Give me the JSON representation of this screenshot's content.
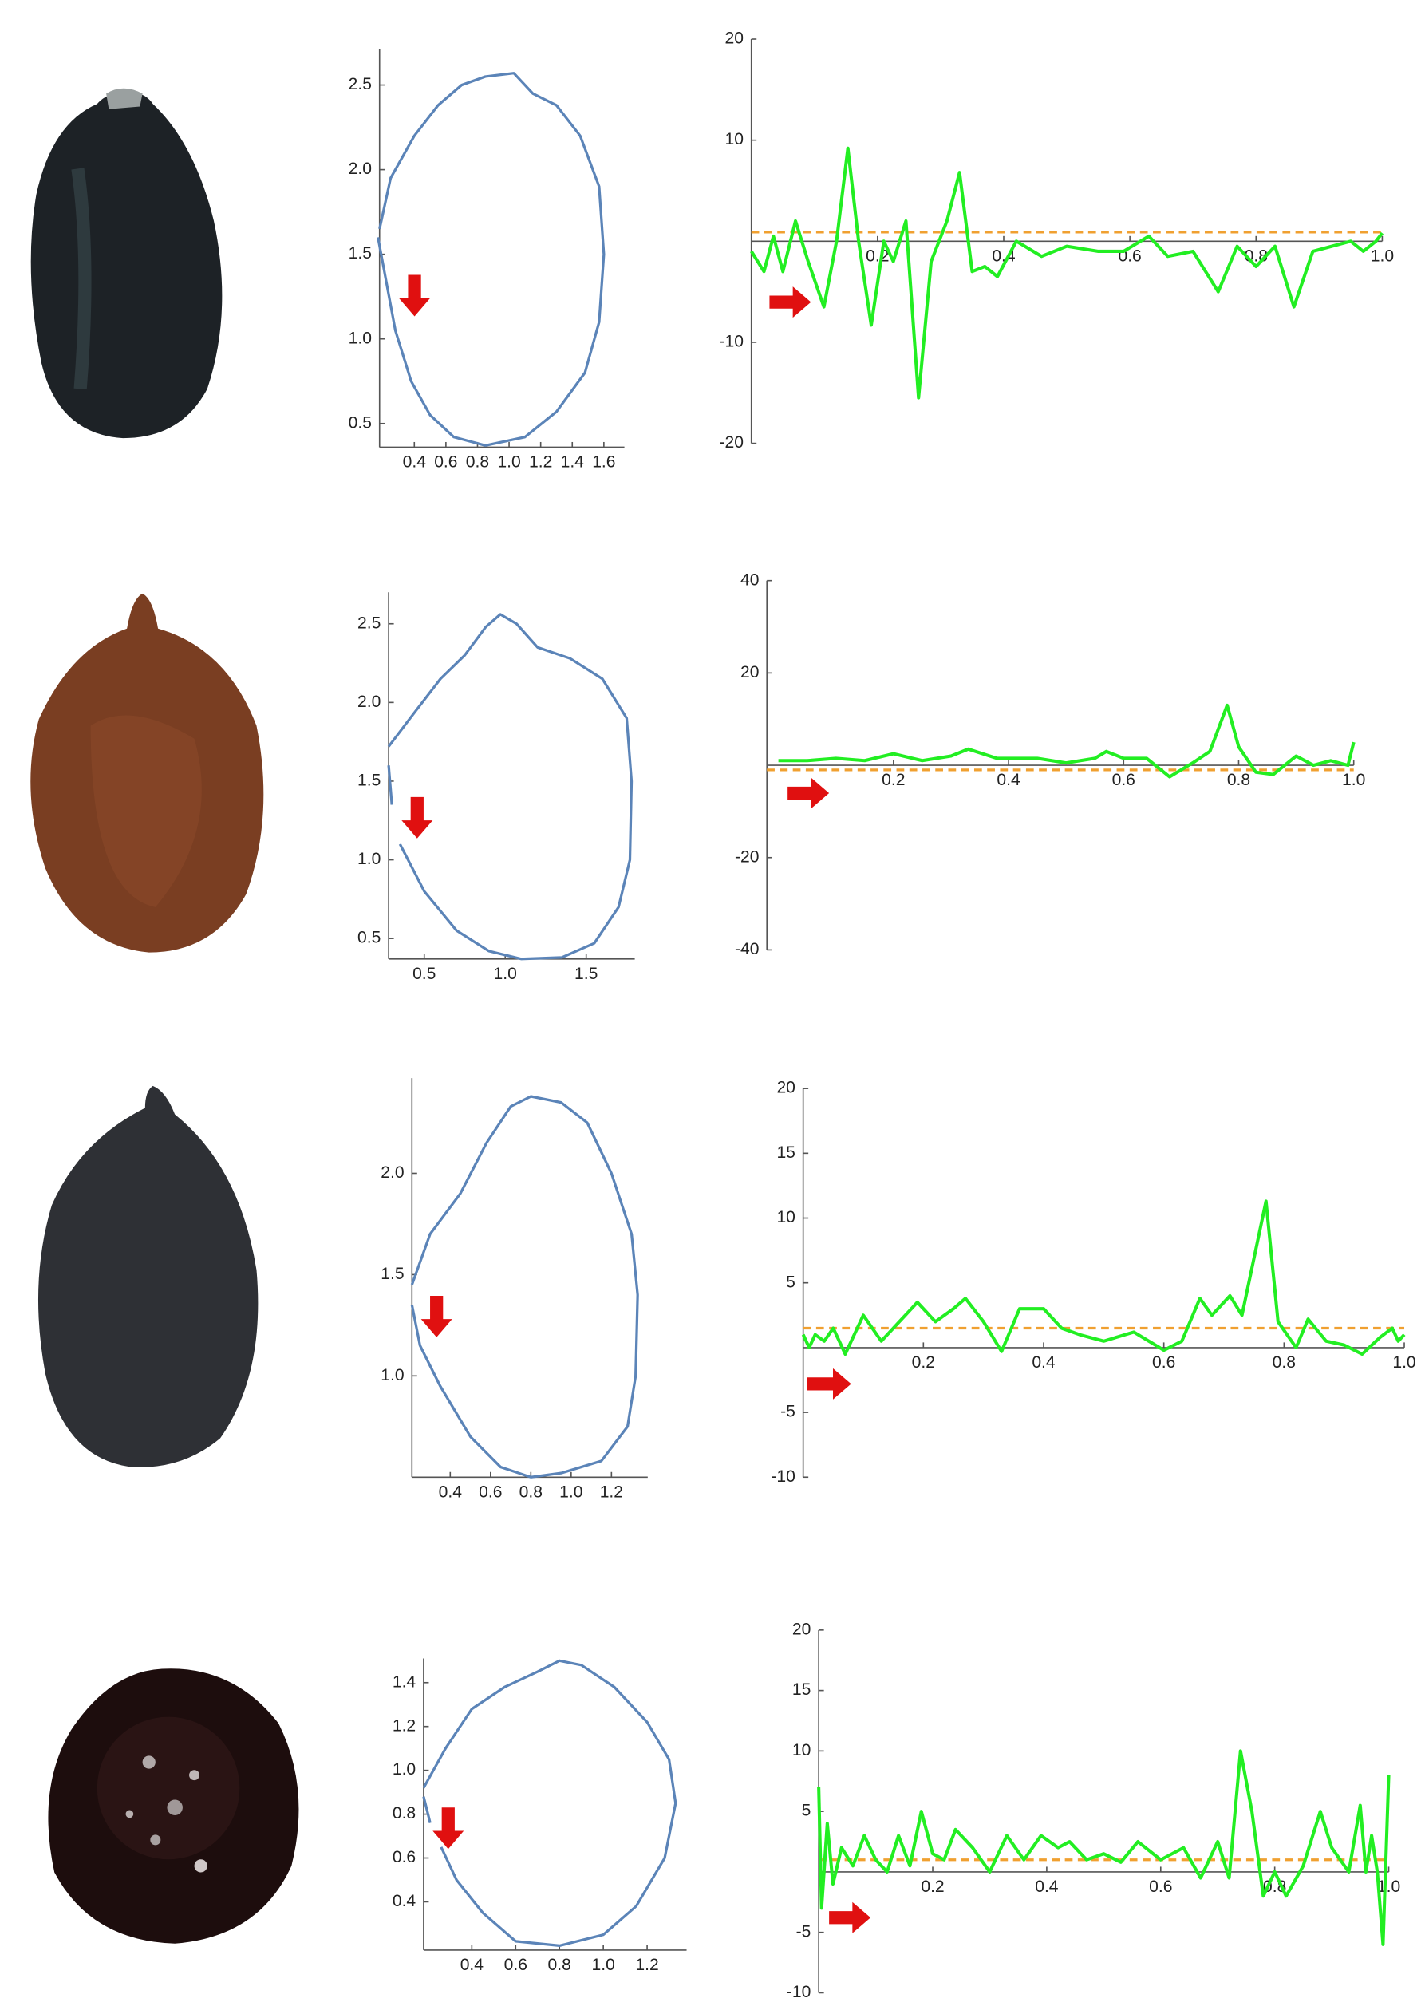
{
  "chart_data": [
    {
      "type": "line",
      "color": "#5b84b8",
      "x": [
        0.18,
        0.25,
        0.4,
        0.55,
        0.7,
        0.85,
        1.03,
        1.15,
        1.3,
        1.45,
        1.57,
        1.6,
        1.57,
        1.48,
        1.3,
        1.1,
        0.85,
        0.65,
        0.5,
        0.38,
        0.28,
        0.22,
        0.17
      ],
      "values": [
        1.65,
        1.95,
        2.2,
        2.38,
        2.5,
        2.55,
        2.57,
        2.45,
        2.38,
        2.2,
        1.9,
        1.5,
        1.1,
        0.8,
        0.57,
        0.42,
        0.37,
        0.42,
        0.55,
        0.75,
        1.05,
        1.35,
        1.6
      ],
      "xlim": [
        0.18,
        1.73
      ],
      "ylim": [
        0.36,
        2.71
      ],
      "xticks": [
        0.4,
        0.6,
        0.8,
        {
          "value": 1,
          "label": "1.0"
        },
        1.2,
        1.4,
        1.6
      ],
      "yticks": [
        0.5,
        {
          "value": 1,
          "label": "1.0"
        },
        1.5,
        {
          "value": 2,
          "label": "2.0"
        },
        2.5
      ]
    },
    {
      "type": "line",
      "color": "#22ee22",
      "x": [
        0,
        0.02,
        0.035,
        0.05,
        0.07,
        0.09,
        0.115,
        0.135,
        0.153,
        0.17,
        0.19,
        0.21,
        0.225,
        0.245,
        0.265,
        0.285,
        0.31,
        0.33,
        0.35,
        0.37,
        0.39,
        0.42,
        0.46,
        0.5,
        0.55,
        0.59,
        0.63,
        0.66,
        0.7,
        0.74,
        0.77,
        0.8,
        0.83,
        0.86,
        0.89,
        0.92,
        0.95,
        0.97,
        0.99,
        1.0
      ],
      "values": [
        -1,
        -3,
        0.5,
        -3,
        2,
        -2,
        -6.5,
        0,
        9.2,
        0,
        -8.3,
        0,
        -2,
        2,
        -15.5,
        -2,
        2,
        6.8,
        -3,
        -2.5,
        -3.5,
        0,
        -1.5,
        -0.5,
        -1,
        -1,
        0.5,
        -1.5,
        -1,
        -5,
        -0.5,
        -2.5,
        -0.5,
        -6.5,
        -1,
        -0.5,
        0,
        -1,
        0,
        0.8
      ],
      "threshold": 0.9,
      "threshold_color": "#f0a030",
      "xlim": [
        0,
        1.0
      ],
      "ylim": [
        -20,
        20
      ],
      "xticks": [
        0.2,
        0.4,
        0.6,
        0.8,
        {
          "value": 1,
          "label": "1.0"
        }
      ],
      "yticks": [
        -20,
        -10,
        10,
        20
      ]
    },
    {
      "type": "line",
      "color": "#5b84b8",
      "x": [
        0.28,
        0.45,
        0.6,
        0.75,
        0.88,
        0.97,
        1.07,
        1.2,
        1.4,
        1.6,
        1.75,
        1.78,
        1.77,
        1.7,
        1.55,
        1.35,
        1.1,
        0.9,
        0.7,
        0.5,
        0.35,
        null,
        0.3,
        0.28
      ],
      "values": [
        1.72,
        1.95,
        2.15,
        2.3,
        2.48,
        2.56,
        2.5,
        2.35,
        2.28,
        2.15,
        1.9,
        1.5,
        1.0,
        0.7,
        0.47,
        0.38,
        0.37,
        0.42,
        0.55,
        0.8,
        1.1,
        null,
        1.35,
        1.6
      ],
      "xlim": [
        0.28,
        1.8
      ],
      "ylim": [
        0.37,
        2.7
      ],
      "xticks": [
        0.5,
        {
          "value": 1,
          "label": "1.0"
        },
        1.5
      ],
      "yticks": [
        0.5,
        {
          "value": 1,
          "label": "1.0"
        },
        1.5,
        {
          "value": 2,
          "label": "2.0"
        },
        2.5
      ]
    },
    {
      "type": "line",
      "color": "#22ee22",
      "x": [
        0,
        0.05,
        0.1,
        0.15,
        0.2,
        0.25,
        0.3,
        0.33,
        0.38,
        0.45,
        0.5,
        0.55,
        0.57,
        0.6,
        0.64,
        0.68,
        0.72,
        0.75,
        0.78,
        0.8,
        0.83,
        0.86,
        0.9,
        0.93,
        0.96,
        0.99,
        1.0
      ],
      "values": [
        1,
        1,
        1.5,
        1,
        2.5,
        1,
        2,
        3.5,
        1.5,
        1.5,
        0.5,
        1.5,
        3,
        1.5,
        1.5,
        -2.5,
        0.5,
        3,
        13,
        4,
        -1.5,
        -2,
        2,
        0,
        1,
        0,
        5
      ],
      "threshold": -1,
      "threshold_color": "#f0a030",
      "xlim": [
        -0.02,
        1.0
      ],
      "ylim": [
        -40,
        40
      ],
      "xticks": [
        0.2,
        0.4,
        0.6,
        0.8,
        {
          "value": 1,
          "label": "1.0"
        }
      ],
      "yticks": [
        -40,
        -20,
        20,
        40
      ]
    },
    {
      "type": "line",
      "color": "#5b84b8",
      "x": [
        0.21,
        0.3,
        0.45,
        0.58,
        0.7,
        0.8,
        0.95,
        1.08,
        1.2,
        1.3,
        1.33,
        1.32,
        1.28,
        1.15,
        0.95,
        0.8,
        0.65,
        0.5,
        0.35,
        0.25,
        0.21
      ],
      "values": [
        1.45,
        1.7,
        1.9,
        2.15,
        2.33,
        2.38,
        2.35,
        2.25,
        2.0,
        1.7,
        1.4,
        1.0,
        0.75,
        0.58,
        0.52,
        0.5,
        0.55,
        0.7,
        0.95,
        1.15,
        1.35
      ],
      "xlim": [
        0.21,
        1.38
      ],
      "ylim": [
        0.5,
        2.47
      ],
      "xticks": [
        0.4,
        0.6,
        0.8,
        {
          "value": 1,
          "label": "1.0"
        },
        1.2
      ],
      "yticks": [
        {
          "value": 1,
          "label": "1.0"
        },
        1.5,
        {
          "value": 2,
          "label": "2.0"
        }
      ]
    },
    {
      "type": "line",
      "color": "#22ee22",
      "x": [
        0,
        0.01,
        0.02,
        0.035,
        0.05,
        0.07,
        0.1,
        0.13,
        0.16,
        0.19,
        0.22,
        0.25,
        0.27,
        0.3,
        0.33,
        0.36,
        0.4,
        0.43,
        0.46,
        0.5,
        0.55,
        0.6,
        0.63,
        0.66,
        0.68,
        0.71,
        0.73,
        0.77,
        0.79,
        0.82,
        0.84,
        0.87,
        0.9,
        0.93,
        0.96,
        0.98,
        0.99,
        1.0
      ],
      "values": [
        1,
        0,
        1,
        0.5,
        1.5,
        -0.5,
        2.5,
        0.5,
        2,
        3.5,
        2,
        3,
        3.8,
        2,
        -0.3,
        3,
        3,
        1.5,
        1,
        0.5,
        1.2,
        -0.2,
        0.5,
        3.8,
        2.5,
        4,
        2.5,
        11.3,
        2,
        0,
        2.2,
        0.5,
        0.2,
        -0.5,
        0.8,
        1.5,
        0.5,
        1
      ],
      "threshold": 1.5,
      "threshold_color": "#f0a030",
      "xlim": [
        0,
        1.0
      ],
      "ylim": [
        -10,
        20
      ],
      "xticks": [
        0.2,
        0.4,
        0.6,
        0.8,
        {
          "value": 1,
          "label": "1.0"
        }
      ],
      "yticks": [
        -10,
        -5,
        5,
        10,
        15,
        20
      ]
    },
    {
      "type": "line",
      "color": "#5b84b8",
      "x": [
        0.18,
        0.28,
        0.4,
        0.55,
        0.7,
        0.8,
        0.9,
        1.05,
        1.2,
        1.3,
        1.33,
        1.28,
        1.15,
        1.0,
        0.8,
        0.6,
        0.45,
        0.33,
        0.26,
        null,
        0.21,
        0.18
      ],
      "values": [
        0.92,
        1.1,
        1.28,
        1.38,
        1.45,
        1.5,
        1.48,
        1.38,
        1.22,
        1.05,
        0.85,
        0.6,
        0.38,
        0.25,
        0.2,
        0.22,
        0.35,
        0.5,
        0.65,
        null,
        0.76,
        0.88
      ],
      "xlim": [
        0.18,
        1.38
      ],
      "ylim": [
        0.18,
        1.51
      ],
      "xticks": [
        0.4,
        0.6,
        0.8,
        {
          "value": 1,
          "label": "1.0"
        },
        1.2
      ],
      "yticks": [
        0.4,
        0.6,
        0.8,
        {
          "value": 1,
          "label": "1.0"
        },
        1.2,
        1.4
      ]
    },
    {
      "type": "line",
      "color": "#22ee22",
      "x": [
        0,
        0.005,
        0.015,
        0.025,
        0.04,
        0.06,
        0.08,
        0.1,
        0.12,
        0.14,
        0.16,
        0.18,
        0.2,
        0.22,
        0.24,
        0.27,
        0.3,
        0.33,
        0.36,
        0.39,
        0.42,
        0.44,
        0.47,
        0.5,
        0.53,
        0.56,
        0.6,
        0.64,
        0.67,
        0.7,
        0.72,
        0.74,
        0.76,
        0.78,
        0.8,
        0.82,
        0.85,
        0.88,
        0.9,
        0.93,
        0.95,
        0.96,
        0.97,
        0.98,
        0.99,
        1.0
      ],
      "values": [
        7,
        -3,
        4,
        -1,
        2,
        0.5,
        3,
        1,
        0,
        3,
        0.5,
        5,
        1.5,
        1,
        3.5,
        2,
        0,
        3,
        1,
        3,
        2,
        2.5,
        1,
        1.5,
        0.8,
        2.5,
        1,
        2,
        -0.5,
        2.5,
        -0.5,
        10,
        5,
        -2,
        0,
        -2,
        0.5,
        5,
        2,
        0,
        5.5,
        0,
        3,
        0,
        -6,
        8
      ],
      "threshold": 1,
      "threshold_color": "#f0a030",
      "xlim": [
        0,
        1.0
      ],
      "ylim": [
        -10,
        20
      ],
      "xticks": [
        0.2,
        0.4,
        0.6,
        0.8,
        {
          "value": 1,
          "label": "1.0"
        }
      ],
      "yticks": [
        -10,
        -5,
        5,
        10,
        15,
        20
      ]
    }
  ]
}
